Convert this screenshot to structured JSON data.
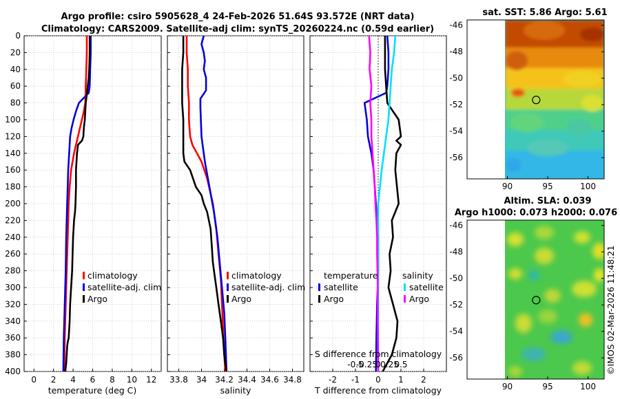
{
  "header": {
    "line1": "Argo profile: csiro 5905628_4 24-Feb-2026 51.64S 93.572E (NRT data)",
    "line2": "Climatology: CARS2009. Satellite-adj clim: synTS_20260224.nc (0.59d earlier)"
  },
  "colors": {
    "climatology": "#ff0000",
    "satellite_adj": "#0000dd",
    "argo": "#000000",
    "satellite_s": "#00e0ff",
    "argo_s": "#ff00ff"
  },
  "chart_data": [
    {
      "type": "line",
      "id": "temperature",
      "xlabel": "temperature (deg C)",
      "xlim": [
        -1,
        13
      ],
      "ylim": [
        400,
        0
      ],
      "xticks": [
        "0",
        "2",
        "4",
        "6",
        "8",
        "10",
        "12"
      ],
      "yticks": [
        "0",
        "20",
        "40",
        "60",
        "80",
        "100",
        "120",
        "140",
        "160",
        "180",
        "200",
        "220",
        "240",
        "260",
        "280",
        "300",
        "320",
        "340",
        "360",
        "380",
        "400"
      ],
      "legend": [
        "climatology",
        "satellite-adj. clim",
        "Argo"
      ],
      "series": [
        {
          "name": "climatology",
          "color": "#ff0000",
          "x": [
            5.4,
            5.4,
            5.35,
            5.3,
            5.25,
            5.1,
            4.9,
            4.7,
            4.5,
            4.3,
            4.1,
            3.8,
            3.65,
            3.55,
            3.45,
            3.35,
            3.3,
            3.25,
            3.2,
            3.15,
            3.1
          ],
          "y": [
            0,
            20,
            40,
            60,
            80,
            90,
            100,
            110,
            120,
            130,
            140,
            160,
            180,
            200,
            240,
            280,
            300,
            320,
            340,
            360,
            400
          ]
        },
        {
          "name": "satellite-adj. clim",
          "color": "#0000dd",
          "x": [
            5.8,
            5.8,
            5.75,
            5.7,
            5.6,
            4.6,
            4.3,
            4.05,
            3.85,
            3.7,
            3.6,
            3.5,
            3.45,
            3.4,
            3.3,
            3.25,
            3.2,
            3.15,
            3.1,
            3.05,
            3.0
          ],
          "y": [
            0,
            20,
            40,
            60,
            68,
            80,
            90,
            100,
            110,
            120,
            140,
            160,
            180,
            200,
            240,
            280,
            300,
            320,
            340,
            360,
            400
          ]
        },
        {
          "name": "Argo",
          "color": "#000000",
          "x": [
            5.7,
            5.7,
            5.65,
            5.6,
            5.5,
            5.4,
            5.3,
            5.2,
            5.1,
            5.05,
            4.9,
            4.5,
            4.4,
            4.3,
            4.3,
            4.25,
            4.2,
            4.1,
            4.0,
            3.95,
            3.9,
            3.8,
            3.7,
            3.65,
            3.55,
            3.45,
            3.4,
            3.35,
            3.3,
            3.2
          ],
          "y": [
            0,
            20,
            40,
            50,
            60,
            70,
            80,
            100,
            110,
            120,
            125,
            130,
            140,
            160,
            180,
            200,
            210,
            220,
            240,
            260,
            280,
            300,
            320,
            340,
            360,
            365,
            370,
            380,
            390,
            400
          ]
        }
      ]
    },
    {
      "type": "line",
      "id": "salinity",
      "xlabel": "salinity",
      "xlim": [
        33.7,
        34.9
      ],
      "ylim": [
        400,
        0
      ],
      "xticks": [
        "33.8",
        "34",
        "34.2",
        "34.4",
        "34.6",
        "34.8"
      ],
      "legend": [
        "climatology",
        "satellite-adj. clim",
        "Argo"
      ],
      "series": [
        {
          "name": "climatology",
          "color": "#ff0000",
          "x": [
            33.87,
            33.87,
            33.88,
            33.88,
            33.89,
            33.89,
            33.9,
            33.92,
            33.96,
            34.0,
            34.05,
            34.1,
            34.13,
            34.15,
            34.17,
            34.18,
            34.19,
            34.2,
            34.21
          ],
          "y": [
            0,
            20,
            40,
            60,
            80,
            100,
            120,
            130,
            140,
            150,
            170,
            200,
            230,
            260,
            290,
            320,
            350,
            380,
            400
          ]
        },
        {
          "name": "satellite-adj. clim",
          "color": "#0000dd",
          "x": [
            34.02,
            34.0,
            34.02,
            34.03,
            34.02,
            34.04,
            34.04,
            33.99,
            33.99,
            34.0,
            34.03,
            34.07,
            34.11,
            34.14,
            34.16,
            34.18,
            34.2,
            34.21,
            34.22
          ],
          "y": [
            0,
            10,
            20,
            30,
            40,
            50,
            65,
            75,
            85,
            120,
            150,
            180,
            210,
            240,
            270,
            300,
            330,
            360,
            400
          ]
        },
        {
          "name": "Argo",
          "color": "#000000",
          "x": [
            33.84,
            33.84,
            33.83,
            33.83,
            33.83,
            33.84,
            33.84,
            33.84,
            33.85,
            33.9,
            33.95,
            34.0,
            34.02,
            34.05,
            34.08,
            34.09,
            34.1,
            34.12,
            34.13,
            34.15,
            34.17,
            34.19,
            34.2,
            34.21,
            34.22
          ],
          "y": [
            0,
            20,
            40,
            60,
            80,
            100,
            120,
            140,
            150,
            160,
            180,
            190,
            200,
            210,
            230,
            250,
            270,
            290,
            300,
            320,
            340,
            360,
            380,
            390,
            400
          ]
        }
      ]
    },
    {
      "type": "line",
      "id": "differences",
      "xlabel": "T difference from climatology",
      "xlim": [
        -3,
        3
      ],
      "ylim": [
        400,
        0
      ],
      "xticks": [
        "-2",
        "-1",
        "0",
        "1",
        "2"
      ],
      "secondary_label": "S difference from climatology",
      "secondary_ticks": [
        "-0.5",
        "-0.25",
        "0",
        "0.25",
        "0.5"
      ],
      "legend_left_title": "temperature",
      "legend_right_title": "salinity",
      "legend_left": [
        "satellite",
        "Argo"
      ],
      "legend_right": [
        "satellite",
        "Argo"
      ],
      "series": [
        {
          "name": "temperature satellite",
          "color": "#0000dd",
          "x": [
            0.4,
            0.45,
            0.45,
            0.4,
            0.35,
            -0.6,
            -0.5,
            -0.45,
            -0.3,
            -0.2,
            -0.15,
            -0.1,
            -0.05,
            0.0,
            0.0,
            0.0,
            -0.02,
            -0.05,
            -0.08,
            -0.1
          ],
          "y": [
            0,
            20,
            40,
            60,
            68,
            80,
            100,
            120,
            140,
            160,
            180,
            200,
            220,
            240,
            260,
            280,
            300,
            320,
            360,
            400
          ]
        },
        {
          "name": "temperature Argo",
          "color": "#000000",
          "x": [
            0.3,
            0.3,
            0.3,
            0.35,
            0.4,
            0.9,
            1.0,
            0.8,
            1.0,
            0.8,
            0.75,
            0.9,
            0.6,
            0.65,
            0.5,
            0.55,
            0.45,
            0.65,
            0.85,
            0.8,
            0.6,
            0.2
          ],
          "y": [
            0,
            20,
            40,
            60,
            80,
            100,
            120,
            125,
            130,
            140,
            160,
            200,
            220,
            240,
            260,
            280,
            300,
            320,
            340,
            360,
            380,
            400
          ]
        },
        {
          "name": "salinity satellite",
          "color": "#00e0ff",
          "x": [
            0.75,
            0.7,
            0.6,
            0.55,
            0.5,
            0.45,
            0.35,
            0.25,
            0.15,
            0.08,
            0.0,
            0.0,
            0.0,
            0.0
          ],
          "y": [
            0,
            20,
            40,
            60,
            80,
            100,
            120,
            140,
            160,
            180,
            200,
            240,
            320,
            400
          ]
        },
        {
          "name": "salinity Argo",
          "color": "#ff00ff",
          "x": [
            -0.4,
            -0.35,
            -0.38,
            -0.3,
            -0.35,
            -0.3,
            -0.3,
            -0.25,
            -0.2,
            -0.15,
            -0.12,
            -0.08,
            -0.05,
            -0.05,
            -0.03,
            -0.02,
            -0.02,
            0.0
          ],
          "y": [
            0,
            20,
            40,
            60,
            80,
            100,
            120,
            140,
            160,
            180,
            200,
            220,
            240,
            260,
            280,
            300,
            340,
            400
          ]
        }
      ]
    },
    {
      "type": "heatmap",
      "id": "sst-map",
      "title": "sat. SST: 5.86 Argo: 5.61",
      "xlim": [
        85,
        102
      ],
      "ylim": [
        -57.6,
        -45.6
      ],
      "xticks": [
        "90",
        "95",
        "100"
      ],
      "yticks": [
        "-46",
        "-48",
        "-50",
        "-52",
        "-54",
        "-56"
      ],
      "data_xlim": [
        90,
        102
      ],
      "marker": {
        "lon": 93.57,
        "lat": -51.64
      }
    },
    {
      "type": "heatmap",
      "id": "sla-map",
      "title_line1": "Altim. SLA: 0.039",
      "title_line2": "Argo h1000: 0.073 h2000: 0.076",
      "xlim": [
        85,
        102
      ],
      "ylim": [
        -57.6,
        -45.6
      ],
      "xticks": [
        "90",
        "95",
        "100"
      ],
      "yticks": [
        "-46",
        "-48",
        "-50",
        "-52",
        "-54",
        "-56"
      ],
      "data_xlim": [
        90,
        102
      ],
      "marker": {
        "lon": 93.57,
        "lat": -51.64
      }
    }
  ],
  "watermark": "©IMOS 02-Mar-2026 11:48:21"
}
